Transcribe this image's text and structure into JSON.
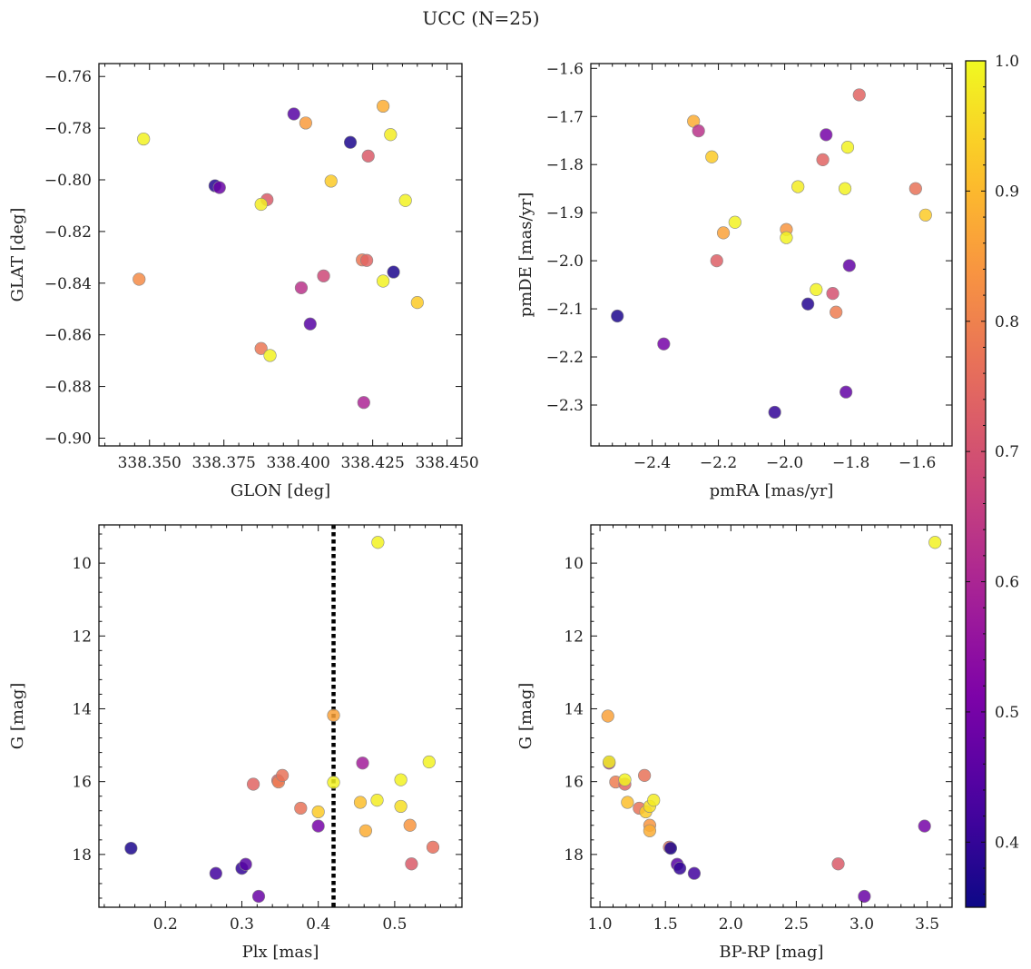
{
  "figure": {
    "title": "UCC (N=25)"
  },
  "colorbar": {
    "range": [
      0.35,
      1.0
    ],
    "ticks": [
      0.4,
      0.5,
      0.6,
      0.7,
      0.8,
      0.9,
      1.0
    ],
    "tick_labels": [
      "0.4",
      "0.5",
      "0.6",
      "0.7",
      "0.8",
      "0.9",
      "1.0"
    ],
    "colormap": "plasma"
  },
  "chart_data": [
    {
      "type": "scatter",
      "id": "glon-glat",
      "title": "",
      "xlabel": "GLON [deg]",
      "ylabel": "GLAT [deg]",
      "xlim": [
        338.333,
        338.455
      ],
      "ylim": [
        -0.903,
        -0.755
      ],
      "x_ticks": [
        338.35,
        338.375,
        338.4,
        338.425,
        338.45
      ],
      "x_tick_labels": [
        "338.350",
        "338.375",
        "338.400",
        "338.425",
        "338.450"
      ],
      "y_ticks": [
        -0.76,
        -0.78,
        -0.8,
        -0.82,
        -0.84,
        -0.86,
        -0.88,
        -0.9
      ],
      "y_tick_labels": [
        "−0.76",
        "−0.78",
        "−0.80",
        "−0.82",
        "−0.84",
        "−0.86",
        "−0.88",
        "−0.90"
      ],
      "points": [
        {
          "x": 338.348,
          "y": -0.7842,
          "c": 0.99
        },
        {
          "x": 338.3465,
          "y": -0.8385,
          "c": 0.82
        },
        {
          "x": 338.372,
          "y": -0.8023,
          "c": 0.38
        },
        {
          "x": 338.3735,
          "y": -0.803,
          "c": 0.48
        },
        {
          "x": 338.3895,
          "y": -0.8077,
          "c": 0.72
        },
        {
          "x": 338.3875,
          "y": -0.8095,
          "c": 0.98
        },
        {
          "x": 338.3875,
          "y": -0.8653,
          "c": 0.78
        },
        {
          "x": 338.3905,
          "y": -0.868,
          "c": 0.99
        },
        {
          "x": 338.3985,
          "y": -0.7745,
          "c": 0.45
        },
        {
          "x": 338.4025,
          "y": -0.778,
          "c": 0.85
        },
        {
          "x": 338.401,
          "y": -0.8418,
          "c": 0.63
        },
        {
          "x": 338.404,
          "y": -0.8558,
          "c": 0.45
        },
        {
          "x": 338.4085,
          "y": -0.8372,
          "c": 0.68
        },
        {
          "x": 338.411,
          "y": -0.8005,
          "c": 0.93
        },
        {
          "x": 338.4175,
          "y": -0.7855,
          "c": 0.37
        },
        {
          "x": 338.4215,
          "y": -0.831,
          "c": 0.78
        },
        {
          "x": 338.423,
          "y": -0.8312,
          "c": 0.74
        },
        {
          "x": 338.422,
          "y": -0.8862,
          "c": 0.6
        },
        {
          "x": 338.4235,
          "y": -0.7908,
          "c": 0.72
        },
        {
          "x": 338.4285,
          "y": -0.7715,
          "c": 0.88
        },
        {
          "x": 338.431,
          "y": -0.7825,
          "c": 0.98
        },
        {
          "x": 338.432,
          "y": -0.8357,
          "c": 0.37
        },
        {
          "x": 338.4285,
          "y": -0.8392,
          "c": 0.99
        },
        {
          "x": 338.436,
          "y": -0.808,
          "c": 0.99
        },
        {
          "x": 338.44,
          "y": -0.8475,
          "c": 0.93
        }
      ]
    },
    {
      "type": "scatter",
      "id": "pmra-pmde",
      "title": "",
      "xlabel": "pmRA [mas/yr]",
      "ylabel": "pmDE [mas/yr]",
      "xlim": [
        -2.585,
        -1.495
      ],
      "ylim": [
        -2.385,
        -1.59
      ],
      "x_ticks": [
        -2.4,
        -2.2,
        -2.0,
        -1.8,
        -1.6
      ],
      "x_tick_labels": [
        "−2.4",
        "−2.2",
        "−2.0",
        "−1.8",
        "−1.6"
      ],
      "y_ticks": [
        -1.6,
        -1.7,
        -1.8,
        -1.9,
        -2.0,
        -2.1,
        -2.2,
        -2.3
      ],
      "y_tick_labels": [
        "−1.6",
        "−1.7",
        "−1.8",
        "−1.9",
        "−2.0",
        "−2.1",
        "−2.2",
        "−2.3"
      ],
      "points": [
        {
          "x": -2.505,
          "y": -2.115,
          "c": 0.37
        },
        {
          "x": -2.365,
          "y": -2.173,
          "c": 0.5
        },
        {
          "x": -2.275,
          "y": -1.71,
          "c": 0.88
        },
        {
          "x": -2.26,
          "y": -1.73,
          "c": 0.63
        },
        {
          "x": -2.22,
          "y": -1.784,
          "c": 0.93
        },
        {
          "x": -2.205,
          "y": -2.0,
          "c": 0.73
        },
        {
          "x": -2.185,
          "y": -1.942,
          "c": 0.86
        },
        {
          "x": -2.15,
          "y": -1.92,
          "c": 0.99
        },
        {
          "x": -2.03,
          "y": -2.315,
          "c": 0.4
        },
        {
          "x": -1.995,
          "y": -1.935,
          "c": 0.84
        },
        {
          "x": -1.995,
          "y": -1.952,
          "c": 0.99
        },
        {
          "x": -1.96,
          "y": -1.846,
          "c": 0.98
        },
        {
          "x": -1.93,
          "y": -2.09,
          "c": 0.38
        },
        {
          "x": -1.905,
          "y": -2.06,
          "c": 0.99
        },
        {
          "x": -1.885,
          "y": -1.79,
          "c": 0.74
        },
        {
          "x": -1.875,
          "y": -1.738,
          "c": 0.5
        },
        {
          "x": -1.855,
          "y": -2.068,
          "c": 0.7
        },
        {
          "x": -1.845,
          "y": -2.107,
          "c": 0.79
        },
        {
          "x": -1.818,
          "y": -1.85,
          "c": 0.99
        },
        {
          "x": -1.815,
          "y": -2.273,
          "c": 0.47
        },
        {
          "x": -1.81,
          "y": -1.764,
          "c": 0.99
        },
        {
          "x": -1.805,
          "y": -2.01,
          "c": 0.47
        },
        {
          "x": -1.775,
          "y": -1.655,
          "c": 0.74
        },
        {
          "x": -1.605,
          "y": -1.85,
          "c": 0.77
        },
        {
          "x": -1.575,
          "y": -1.905,
          "c": 0.93
        }
      ]
    },
    {
      "type": "scatter",
      "id": "plx-g",
      "title": "",
      "xlabel": "Plx [mas]",
      "ylabel": "G [mag]",
      "xlim": [
        0.113,
        0.588
      ],
      "ylim": [
        19.45,
        8.95
      ],
      "y_inverted": true,
      "x_ticks": [
        0.2,
        0.3,
        0.4,
        0.5
      ],
      "x_tick_labels": [
        "0.2",
        "0.3",
        "0.4",
        "0.5"
      ],
      "y_ticks": [
        10,
        12,
        14,
        16,
        18
      ],
      "y_tick_labels": [
        "10",
        "12",
        "14",
        "16",
        "18"
      ],
      "vline": {
        "x": 0.42,
        "style": "dotted",
        "color": "#000000"
      },
      "points": [
        {
          "x": 0.155,
          "y": 17.83,
          "c": 0.37
        },
        {
          "x": 0.266,
          "y": 18.52,
          "c": 0.42
        },
        {
          "x": 0.3,
          "y": 18.38,
          "c": 0.4
        },
        {
          "x": 0.305,
          "y": 18.27,
          "c": 0.45
        },
        {
          "x": 0.315,
          "y": 16.07,
          "c": 0.74
        },
        {
          "x": 0.322,
          "y": 19.15,
          "c": 0.48
        },
        {
          "x": 0.347,
          "y": 15.97,
          "c": 0.73
        },
        {
          "x": 0.348,
          "y": 16.01,
          "c": 0.79
        },
        {
          "x": 0.353,
          "y": 15.83,
          "c": 0.77
        },
        {
          "x": 0.377,
          "y": 16.73,
          "c": 0.77
        },
        {
          "x": 0.4,
          "y": 16.83,
          "c": 0.93
        },
        {
          "x": 0.4,
          "y": 17.22,
          "c": 0.5
        },
        {
          "x": 0.42,
          "y": 14.18,
          "c": 0.86
        },
        {
          "x": 0.42,
          "y": 16.02,
          "c": 0.99
        },
        {
          "x": 0.455,
          "y": 16.57,
          "c": 0.91
        },
        {
          "x": 0.458,
          "y": 15.49,
          "c": 0.58
        },
        {
          "x": 0.462,
          "y": 17.35,
          "c": 0.88
        },
        {
          "x": 0.477,
          "y": 16.51,
          "c": 0.98
        },
        {
          "x": 0.478,
          "y": 9.43,
          "c": 0.99
        },
        {
          "x": 0.508,
          "y": 15.95,
          "c": 0.99
        },
        {
          "x": 0.508,
          "y": 16.68,
          "c": 0.96
        },
        {
          "x": 0.52,
          "y": 17.2,
          "c": 0.84
        },
        {
          "x": 0.522,
          "y": 18.26,
          "c": 0.72
        },
        {
          "x": 0.545,
          "y": 15.46,
          "c": 0.99
        },
        {
          "x": 0.55,
          "y": 17.8,
          "c": 0.76
        }
      ]
    },
    {
      "type": "scatter",
      "id": "bprp-g",
      "title": "",
      "xlabel": "BP-RP [mag]",
      "ylabel": "G [mag]",
      "xlim": [
        0.93,
        3.69
      ],
      "ylim": [
        19.45,
        8.95
      ],
      "y_inverted": true,
      "x_ticks": [
        1.0,
        1.5,
        2.0,
        2.5,
        3.0,
        3.5
      ],
      "x_tick_labels": [
        "1.0",
        "1.5",
        "2.0",
        "2.5",
        "3.0",
        "3.5"
      ],
      "y_ticks": [
        10,
        12,
        14,
        16,
        18
      ],
      "y_tick_labels": [
        "10",
        "12",
        "14",
        "16",
        "18"
      ],
      "points": [
        {
          "x": 1.06,
          "y": 14.2,
          "c": 0.86
        },
        {
          "x": 1.07,
          "y": 15.49,
          "c": 0.58
        },
        {
          "x": 1.07,
          "y": 15.46,
          "c": 0.99
        },
        {
          "x": 1.12,
          "y": 16.01,
          "c": 0.79
        },
        {
          "x": 1.19,
          "y": 16.07,
          "c": 0.74
        },
        {
          "x": 1.19,
          "y": 15.95,
          "c": 0.99
        },
        {
          "x": 1.21,
          "y": 16.57,
          "c": 0.91
        },
        {
          "x": 1.3,
          "y": 16.73,
          "c": 0.77
        },
        {
          "x": 1.34,
          "y": 15.83,
          "c": 0.77
        },
        {
          "x": 1.35,
          "y": 16.83,
          "c": 0.93
        },
        {
          "x": 1.38,
          "y": 17.2,
          "c": 0.84
        },
        {
          "x": 1.38,
          "y": 17.35,
          "c": 0.88
        },
        {
          "x": 1.38,
          "y": 16.68,
          "c": 0.96
        },
        {
          "x": 1.41,
          "y": 16.51,
          "c": 0.98
        },
        {
          "x": 1.53,
          "y": 17.8,
          "c": 0.76
        },
        {
          "x": 1.54,
          "y": 17.83,
          "c": 0.37
        },
        {
          "x": 1.59,
          "y": 18.27,
          "c": 0.45
        },
        {
          "x": 1.61,
          "y": 18.38,
          "c": 0.4
        },
        {
          "x": 1.72,
          "y": 18.52,
          "c": 0.42
        },
        {
          "x": 2.82,
          "y": 18.26,
          "c": 0.72
        },
        {
          "x": 3.02,
          "y": 19.15,
          "c": 0.48
        },
        {
          "x": 3.48,
          "y": 17.22,
          "c": 0.5
        },
        {
          "x": 3.56,
          "y": 9.43,
          "c": 0.99
        }
      ]
    }
  ]
}
